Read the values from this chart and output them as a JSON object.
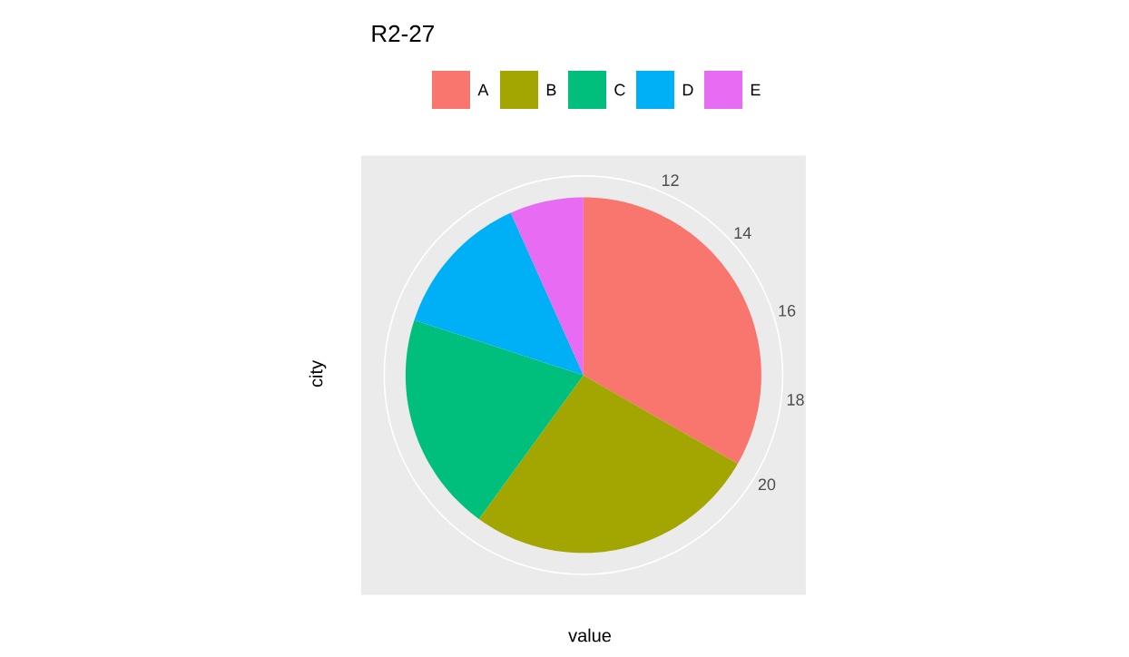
{
  "chart_data": {
    "type": "pie",
    "title": "R2-27",
    "xlabel": "value",
    "ylabel": "city",
    "categories": [
      "A",
      "B",
      "C",
      "D",
      "E"
    ],
    "values": [
      33.3,
      26.7,
      20,
      13.3,
      6.7
    ],
    "colors": [
      "#f8766d",
      "#a3a500",
      "#00bf7d",
      "#00b0f6",
      "#e76bf3"
    ],
    "annotations": [
      "12",
      "14",
      "16",
      "18",
      "20"
    ],
    "grid": true,
    "legend": "top"
  }
}
